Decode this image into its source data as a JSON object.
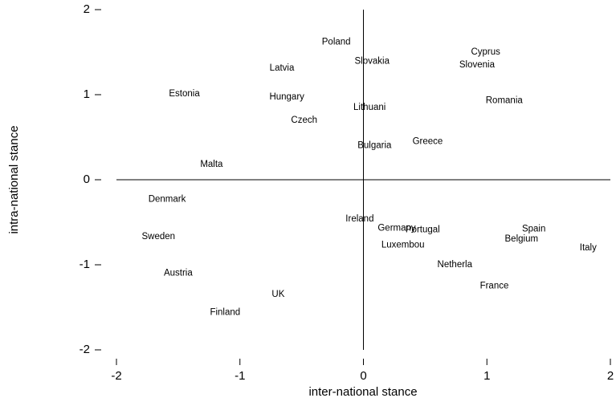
{
  "chart_data": {
    "type": "scatter",
    "xlabel": "inter-national stance",
    "ylabel": "intra-national stance",
    "labels": [
      "Poland",
      "Slovakia",
      "Cyprus",
      "Slovenia",
      "Latvia",
      "Estonia",
      "Hungary",
      "Lithuani",
      "Romania",
      "Czech",
      "Bulgaria",
      "Greece",
      "Malta",
      "Denmark",
      "Ireland",
      "Germany",
      "Portugal",
      "Spain",
      "Belgium",
      "Sweden",
      "Luxembou",
      "Italy",
      "Netherla",
      "Austria",
      "France",
      "UK",
      "Finland"
    ],
    "x": [
      -0.22,
      0.07,
      0.99,
      0.92,
      -0.66,
      -1.45,
      -0.62,
      0.05,
      1.14,
      -0.48,
      0.09,
      0.52,
      -1.23,
      -1.59,
      -0.03,
      0.27,
      0.48,
      1.38,
      1.28,
      -1.66,
      0.32,
      1.82,
      0.74,
      -1.5,
      1.06,
      -0.69,
      -1.12
    ],
    "values": [
      1.62,
      1.39,
      1.5,
      1.35,
      1.31,
      1.01,
      0.97,
      0.85,
      0.93,
      0.7,
      0.4,
      0.45,
      0.18,
      -0.23,
      -0.46,
      -0.57,
      -0.59,
      -0.58,
      -0.7,
      -0.67,
      -0.77,
      -0.8,
      -1.0,
      -1.1,
      -1.25,
      -1.35,
      -1.56
    ],
    "xlim": [
      -2,
      2
    ],
    "ylim": [
      -2,
      2
    ],
    "xticks": [
      -2,
      -1,
      0,
      1,
      2
    ],
    "yticks": [
      -2,
      -1,
      0,
      1,
      2
    ]
  }
}
